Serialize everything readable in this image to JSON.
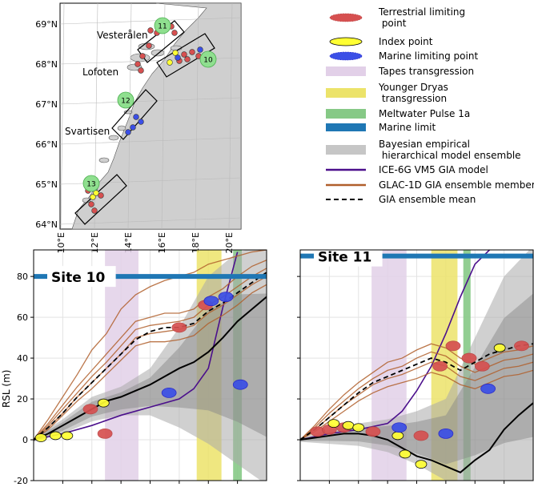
{
  "colors": {
    "terrestrial": "#d65050",
    "index": "#ffff33",
    "marine": "#3b4fe6",
    "tapes": "#e2d0e8",
    "younger_dryas": "#ece36a",
    "mwp1a": "#86c986",
    "marine_limit": "#1f77b4",
    "bayes": "#c6c6c6",
    "ice6g": "#4b0f8c",
    "glac": "#b05f2b",
    "gia_mean": "#000000",
    "site_circle": "#8fdf8f"
  },
  "map": {
    "lat_ticks": [
      "69°N",
      "68°N",
      "67°N",
      "66°N",
      "65°N",
      "64°N"
    ],
    "lon_ticks": [
      "10°E",
      "12°E",
      "14°E",
      "16°E",
      "18°E",
      "20°E"
    ],
    "regions": [
      "Vesterålen",
      "Lofoten",
      "Svartisen"
    ],
    "site_labels": [
      "11",
      "10",
      "12",
      "13"
    ]
  },
  "legend": {
    "items": [
      {
        "key": "terrestrial",
        "label": [
          "Terrestrial limiting",
          " point"
        ]
      },
      {
        "key": "index",
        "label": [
          "Index point"
        ]
      },
      {
        "key": "marine",
        "label": [
          "Marine limiting point"
        ]
      },
      {
        "key": "tapes",
        "label": [
          "Tapes transgression"
        ]
      },
      {
        "key": "younger_dryas",
        "label": [
          "Younger Dryas",
          " transgression"
        ]
      },
      {
        "key": "mwp1a",
        "label": [
          "Meltwater Pulse 1a"
        ]
      },
      {
        "key": "marine_limit",
        "label": [
          "Marine limit"
        ]
      },
      {
        "key": "bayes",
        "label": [
          "Bayesian empirical",
          " hierarchical model ensemble"
        ]
      },
      {
        "key": "ice6g",
        "label": [
          "ICE-6G VM5 GIA model"
        ]
      },
      {
        "key": "glac",
        "label": [
          "GLAC-1D GIA ensemble member"
        ]
      },
      {
        "key": "gia_mean",
        "label": [
          "GIA ensemble mean"
        ]
      }
    ]
  },
  "chart_data": [
    {
      "type": "line",
      "title": "Site 10",
      "ylabel": "RSL (m)",
      "ylim": [
        -20,
        93
      ],
      "yticks": [
        -20,
        0,
        20,
        40,
        60,
        80
      ],
      "x_unit": "kyr BP (relative, 0 = present)",
      "xlim": [
        0,
        16
      ],
      "grid": true,
      "marine_limit": 80,
      "bands": {
        "tapes": [
          4.9,
          7.2
        ],
        "younger_dryas": [
          11.2,
          12.9
        ],
        "mwp1a": [
          13.7,
          14.3
        ]
      },
      "series": [
        {
          "key": "ice6g",
          "x": [
            0,
            2,
            4,
            6,
            8,
            10,
            11,
            12,
            13,
            14
          ],
          "y": [
            0,
            3,
            7,
            12,
            16,
            20,
            25,
            35,
            65,
            92
          ]
        },
        {
          "key": "glac",
          "x": [
            0,
            1,
            2,
            3,
            4,
            5,
            6,
            7,
            8,
            9,
            10,
            11,
            12,
            13,
            14,
            15,
            16
          ],
          "y": [
            0,
            10,
            21,
            32,
            44,
            52,
            64,
            71,
            75,
            78,
            80,
            82,
            86,
            88,
            90,
            92,
            93
          ]
        },
        {
          "key": "glac",
          "x": [
            0,
            1,
            2,
            3,
            4,
            5,
            6,
            7,
            8,
            9,
            10,
            11,
            12,
            13,
            14,
            15,
            16
          ],
          "y": [
            0,
            8,
            17,
            26,
            34,
            42,
            50,
            58,
            60,
            62,
            62,
            64,
            70,
            74,
            80,
            85,
            88
          ]
        },
        {
          "key": "glac",
          "x": [
            0,
            1,
            2,
            3,
            4,
            5,
            6,
            7,
            8,
            9,
            10,
            11,
            12,
            13,
            14,
            15,
            16
          ],
          "y": [
            0,
            7,
            15,
            23,
            31,
            38,
            46,
            54,
            56,
            57,
            58,
            60,
            66,
            70,
            75,
            80,
            84
          ]
        },
        {
          "key": "glac",
          "x": [
            0,
            1,
            2,
            3,
            4,
            5,
            6,
            7,
            8,
            9,
            10,
            11,
            12,
            13,
            14,
            15,
            16
          ],
          "y": [
            0,
            6,
            13,
            21,
            28,
            35,
            42,
            50,
            52,
            53,
            54,
            56,
            62,
            66,
            71,
            76,
            80
          ]
        },
        {
          "key": "glac",
          "x": [
            0,
            1,
            2,
            3,
            4,
            5,
            6,
            7,
            8,
            9,
            10,
            11,
            12,
            13,
            14,
            15,
            16
          ],
          "y": [
            0,
            5,
            12,
            19,
            25,
            32,
            39,
            46,
            48,
            48,
            49,
            51,
            57,
            61,
            66,
            72,
            76
          ]
        },
        {
          "key": "gia_mean",
          "x": [
            0,
            1,
            2,
            3,
            4,
            5,
            6,
            7,
            8,
            9,
            10,
            11,
            12,
            13,
            14,
            15,
            16
          ],
          "y": [
            0,
            6,
            13,
            21,
            28,
            35,
            42,
            49,
            53,
            55,
            55,
            57,
            63,
            67,
            72,
            77,
            82
          ]
        },
        {
          "key": "bayes_mean",
          "x": [
            0,
            1,
            2,
            3,
            4,
            5,
            6,
            7,
            8,
            9,
            10,
            11,
            12,
            13,
            14,
            15,
            16
          ],
          "y": [
            0,
            3,
            7,
            11,
            15,
            19,
            21,
            24,
            27,
            31,
            35,
            38,
            43,
            50,
            58,
            64,
            70
          ]
        }
      ],
      "bayes_band": {
        "x": [
          0,
          2,
          4,
          6,
          8,
          10,
          12,
          14,
          16
        ],
        "lower": [
          -1,
          3,
          9,
          12,
          12,
          6,
          -2,
          -12,
          -22
        ],
        "upper": [
          1,
          10,
          21,
          26,
          35,
          55,
          80,
          92,
          95
        ]
      },
      "points": [
        {
          "type": "terrestrial",
          "x": 3.9,
          "y": 15
        },
        {
          "type": "terrestrial",
          "x": 4.9,
          "y": 3
        },
        {
          "type": "terrestrial",
          "x": 10.0,
          "y": 55
        },
        {
          "type": "terrestrial",
          "x": 11.8,
          "y": 66
        },
        {
          "type": "index",
          "x": 0.5,
          "y": 1
        },
        {
          "type": "index",
          "x": 1.5,
          "y": 2
        },
        {
          "type": "index",
          "x": 2.3,
          "y": 2
        },
        {
          "type": "index",
          "x": 4.8,
          "y": 18
        },
        {
          "type": "marine",
          "x": 9.3,
          "y": 23
        },
        {
          "type": "marine",
          "x": 12.2,
          "y": 68
        },
        {
          "type": "marine",
          "x": 13.2,
          "y": 70
        },
        {
          "type": "marine",
          "x": 14.2,
          "y": 27
        }
      ]
    },
    {
      "type": "line",
      "title": "Site 11",
      "ylabel": "",
      "ylim": [
        -20,
        93
      ],
      "yticks": [
        -20,
        0,
        20,
        40,
        60,
        80
      ],
      "x_unit": "kyr BP (relative, 0 = present)",
      "xlim": [
        0,
        16
      ],
      "grid": true,
      "marine_limit": 90,
      "bands": {
        "tapes": [
          4.9,
          7.3
        ],
        "younger_dryas": [
          9.0,
          10.8
        ],
        "mwp1a": [
          11.2,
          11.7
        ]
      },
      "series": [
        {
          "key": "ice6g",
          "x": [
            0,
            2,
            4,
            6,
            7,
            8,
            9,
            10,
            11,
            12,
            13
          ],
          "y": [
            0,
            3,
            5,
            8,
            14,
            24,
            36,
            52,
            70,
            86,
            93
          ]
        },
        {
          "key": "glac",
          "x": [
            0,
            1,
            2,
            3,
            4,
            5,
            6,
            7,
            8,
            9,
            10,
            11,
            12,
            13,
            14,
            15,
            16
          ],
          "y": [
            0,
            7,
            15,
            22,
            28,
            33,
            38,
            40,
            44,
            47,
            45,
            40,
            37,
            40,
            43,
            44,
            46
          ]
        },
        {
          "key": "glac",
          "x": [
            0,
            1,
            2,
            3,
            4,
            5,
            6,
            7,
            8,
            9,
            10,
            11,
            12,
            13,
            14,
            15,
            16
          ],
          "y": [
            0,
            6,
            13,
            19,
            25,
            30,
            34,
            36,
            40,
            43,
            41,
            36,
            33,
            36,
            39,
            40,
            42
          ]
        },
        {
          "key": "glac",
          "x": [
            0,
            1,
            2,
            3,
            4,
            5,
            6,
            7,
            8,
            9,
            10,
            11,
            12,
            13,
            14,
            15,
            16
          ],
          "y": [
            0,
            5,
            11,
            17,
            22,
            27,
            30,
            32,
            35,
            38,
            36,
            31,
            29,
            32,
            35,
            36,
            38
          ]
        },
        {
          "key": "glac",
          "x": [
            0,
            1,
            2,
            3,
            4,
            5,
            6,
            7,
            8,
            9,
            10,
            11,
            12,
            13,
            14,
            15,
            16
          ],
          "y": [
            0,
            4,
            9,
            14,
            19,
            23,
            26,
            28,
            30,
            33,
            31,
            27,
            25,
            28,
            31,
            32,
            34
          ]
        },
        {
          "key": "gia_mean",
          "x": [
            0,
            1,
            2,
            3,
            4,
            5,
            6,
            7,
            8,
            9,
            10,
            11,
            12,
            13,
            14,
            15,
            16
          ],
          "y": [
            0,
            5,
            11,
            17,
            23,
            28,
            31,
            34,
            37,
            40,
            38,
            34,
            38,
            42,
            44,
            46,
            47
          ]
        },
        {
          "key": "bayes_mean",
          "x": [
            0,
            1,
            2,
            3,
            4,
            5,
            6,
            7,
            8,
            9,
            10,
            11,
            12,
            13,
            14,
            15,
            16
          ],
          "y": [
            0,
            1,
            2,
            3,
            3,
            2,
            0,
            -4,
            -8,
            -10,
            -13,
            -16,
            -10,
            -5,
            5,
            12,
            18
          ]
        }
      ],
      "bayes_band": {
        "x": [
          0,
          2,
          4,
          6,
          8,
          10,
          12,
          14,
          16
        ],
        "lower": [
          -1,
          -2,
          -3,
          -6,
          -12,
          -20,
          -22,
          -22,
          -22
        ],
        "upper": [
          1,
          5,
          8,
          10,
          14,
          20,
          50,
          80,
          95
        ]
      },
      "points": [
        {
          "type": "terrestrial",
          "x": 1.2,
          "y": 4
        },
        {
          "type": "terrestrial",
          "x": 2.0,
          "y": 5
        },
        {
          "type": "terrestrial",
          "x": 3.0,
          "y": 6
        },
        {
          "type": "terrestrial",
          "x": 5.0,
          "y": 4
        },
        {
          "type": "terrestrial",
          "x": 8.3,
          "y": 2
        },
        {
          "type": "terrestrial",
          "x": 9.6,
          "y": 36
        },
        {
          "type": "terrestrial",
          "x": 10.5,
          "y": 46
        },
        {
          "type": "terrestrial",
          "x": 11.6,
          "y": 40
        },
        {
          "type": "terrestrial",
          "x": 12.5,
          "y": 36
        },
        {
          "type": "terrestrial",
          "x": 15.2,
          "y": 46
        },
        {
          "type": "index",
          "x": 2.3,
          "y": 8
        },
        {
          "type": "index",
          "x": 3.3,
          "y": 7
        },
        {
          "type": "index",
          "x": 4.0,
          "y": 6
        },
        {
          "type": "index",
          "x": 6.7,
          "y": 2
        },
        {
          "type": "index",
          "x": 7.2,
          "y": -7
        },
        {
          "type": "index",
          "x": 8.3,
          "y": -12
        },
        {
          "type": "index",
          "x": 13.7,
          "y": 45
        },
        {
          "type": "marine",
          "x": 6.8,
          "y": 6
        },
        {
          "type": "marine",
          "x": 10.0,
          "y": 3
        },
        {
          "type": "marine",
          "x": 12.9,
          "y": 25
        }
      ]
    }
  ]
}
